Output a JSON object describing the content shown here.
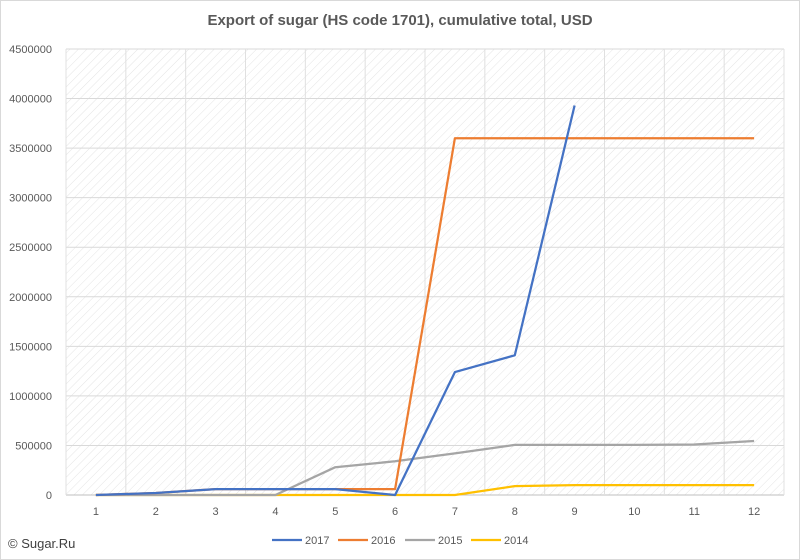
{
  "chart_data": {
    "type": "line",
    "title": "Export of sugar (HS code 1701), cumulative total, USD",
    "xlabel": "",
    "ylabel": "",
    "categories": [
      "1",
      "2",
      "3",
      "4",
      "5",
      "6",
      "7",
      "8",
      "9",
      "10",
      "11",
      "12"
    ],
    "ylim": [
      0,
      4500000
    ],
    "yticks": [
      "0",
      "500000",
      "1000000",
      "1500000",
      "2000000",
      "2500000",
      "3000000",
      "3500000",
      "4000000",
      "4500000"
    ],
    "grid": true,
    "legend_position": "bottom",
    "series": [
      {
        "name": "2017",
        "color": "#4472c4",
        "values": [
          0,
          20000,
          60000,
          60000,
          60000,
          0,
          1240000,
          1410000,
          3930000,
          null,
          null,
          null
        ]
      },
      {
        "name": "2016",
        "color": "#ed7d31",
        "values": [
          0,
          20000,
          60000,
          60000,
          60000,
          60000,
          3600000,
          3600000,
          3600000,
          3600000,
          3600000,
          3600000
        ]
      },
      {
        "name": "2015",
        "color": "#a5a5a5",
        "values": [
          0,
          0,
          0,
          0,
          280000,
          340000,
          420000,
          505000,
          505000,
          505000,
          510000,
          545000
        ]
      },
      {
        "name": "2014",
        "color": "#ffc000",
        "values": [
          0,
          0,
          0,
          0,
          0,
          0,
          0,
          90000,
          100000,
          100000,
          100000,
          100000
        ]
      }
    ]
  },
  "footer": {
    "copyright": "© Sugar.Ru"
  }
}
